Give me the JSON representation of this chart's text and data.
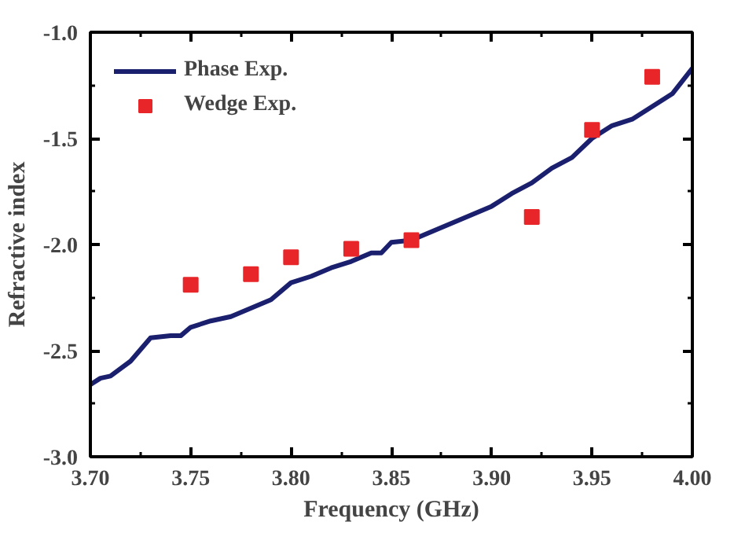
{
  "chart_data": {
    "type": "line",
    "xlabel": "Frequency (GHz)",
    "ylabel": "Refractive index",
    "xlim": [
      3.7,
      4.0
    ],
    "xticks": [
      {
        "value": 3.7,
        "label": "3.70"
      },
      {
        "value": 3.75,
        "label": "3.75"
      },
      {
        "value": 3.8,
        "label": "3.80"
      },
      {
        "value": 3.85,
        "label": "3.85"
      },
      {
        "value": 3.9,
        "label": "3.90"
      },
      {
        "value": 3.95,
        "label": "3.95"
      },
      {
        "value": 4.0,
        "label": "4.00"
      }
    ],
    "ylim": [
      -3.0,
      -1.0
    ],
    "yticks": [
      {
        "value": -3.0,
        "label": "-3.0"
      },
      {
        "value": -2.5,
        "label": "-2.5"
      },
      {
        "value": -2.0,
        "label": "-2.0"
      },
      {
        "value": -1.5,
        "label": "-1.5"
      },
      {
        "value": -1.0,
        "label": "-1.0"
      }
    ],
    "grid": false,
    "legend": "top left",
    "series": [
      {
        "name": "Phase Exp.",
        "color": "#1a1f6e",
        "marker": "none",
        "line_style": "solid",
        "x": [
          3.7,
          3.705,
          3.71,
          3.72,
          3.73,
          3.74,
          3.745,
          3.75,
          3.76,
          3.77,
          3.78,
          3.79,
          3.8,
          3.81,
          3.82,
          3.83,
          3.84,
          3.845,
          3.85,
          3.86,
          3.87,
          3.88,
          3.89,
          3.9,
          3.91,
          3.92,
          3.93,
          3.94,
          3.95,
          3.96,
          3.97,
          3.98,
          3.99,
          4.0
        ],
        "values": [
          -2.66,
          -2.63,
          -2.62,
          -2.55,
          -2.44,
          -2.43,
          -2.43,
          -2.39,
          -2.36,
          -2.34,
          -2.3,
          -2.26,
          -2.18,
          -2.15,
          -2.11,
          -2.08,
          -2.04,
          -2.04,
          -1.99,
          -1.98,
          -1.94,
          -1.9,
          -1.86,
          -1.82,
          -1.76,
          -1.71,
          -1.64,
          -1.59,
          -1.5,
          -1.44,
          -1.41,
          -1.35,
          -1.29,
          -1.17
        ]
      },
      {
        "name": "Wedge Exp.",
        "type": "scatter",
        "color": "#e8262a",
        "marker": "square",
        "x": [
          3.75,
          3.78,
          3.8,
          3.83,
          3.86,
          3.92,
          3.95,
          3.98
        ],
        "values": [
          -2.19,
          -2.14,
          -2.06,
          -2.02,
          -1.98,
          -1.87,
          -1.46,
          -1.21
        ]
      }
    ]
  }
}
